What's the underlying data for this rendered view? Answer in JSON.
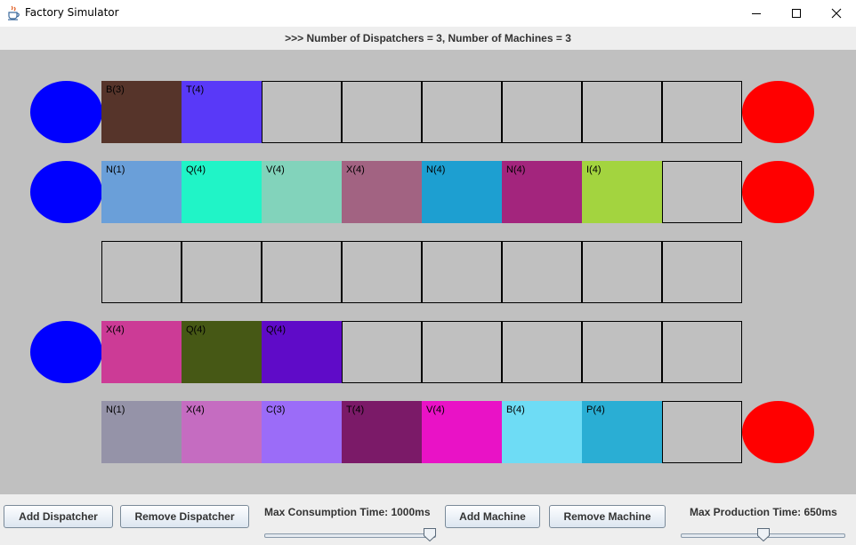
{
  "window": {
    "title": "Factory Simulator",
    "controls": [
      "minimize",
      "maximize",
      "close"
    ]
  },
  "status": "&gt;&gt;&gt; Number of Dispatchers = 3, Number of Machines = 3",
  "colors": {
    "background": "#c0c0c0",
    "dispatcher": "#0000ff",
    "machine": "#ff0000"
  },
  "rows": [
    {
      "dispatcher": true,
      "machine": true,
      "slots": [
        {
          "label": "B(3)",
          "color": "#56342a"
        },
        {
          "label": "T(4)",
          "color": "#5939f8"
        },
        null,
        null,
        null,
        null,
        null,
        null
      ]
    },
    {
      "dispatcher": true,
      "machine": true,
      "slots": [
        {
          "label": "N(1)",
          "color": "#6a9fd9"
        },
        {
          "label": "Q(4)",
          "color": "#20f4c7"
        },
        {
          "label": "V(4)",
          "color": "#82d3bb"
        },
        {
          "label": "X(4)",
          "color": "#a26382"
        },
        {
          "label": "N(4)",
          "color": "#1d9fd1"
        },
        {
          "label": "N(4)",
          "color": "#a3257d"
        },
        {
          "label": "I(4)",
          "color": "#a3d43f"
        },
        null
      ]
    },
    {
      "dispatcher": false,
      "machine": false,
      "slots": [
        null,
        null,
        null,
        null,
        null,
        null,
        null,
        null
      ]
    },
    {
      "dispatcher": true,
      "machine": false,
      "slots": [
        {
          "label": "X(4)",
          "color": "#cc3b96"
        },
        {
          "label": "Q(4)",
          "color": "#465815"
        },
        {
          "label": "Q(4)",
          "color": "#5f0bc8"
        },
        null,
        null,
        null,
        null,
        null
      ]
    },
    {
      "dispatcher": false,
      "machine": true,
      "slots": [
        {
          "label": "N(1)",
          "color": "#9593a8"
        },
        {
          "label": "X(4)",
          "color": "#c56cc1"
        },
        {
          "label": "C(3)",
          "color": "#9b6cf8"
        },
        {
          "label": "T(4)",
          "color": "#7b1a68"
        },
        {
          "label": "V(4)",
          "color": "#e912c6"
        },
        {
          "label": "B(4)",
          "color": "#6edcf5"
        },
        {
          "label": "P(4)",
          "color": "#2aaed4"
        },
        null
      ]
    }
  ],
  "controls": {
    "add_dispatcher": "Add Dispatcher",
    "remove_dispatcher": "Remove Dispatcher",
    "consumption_label": "Max Consumption Time: 1000ms",
    "consumption_value_fraction": 1.0,
    "add_machine": "Add Machine",
    "remove_machine": "Remove Machine",
    "production_label": "Max Production Time: 650ms",
    "production_value_fraction": 0.5
  }
}
